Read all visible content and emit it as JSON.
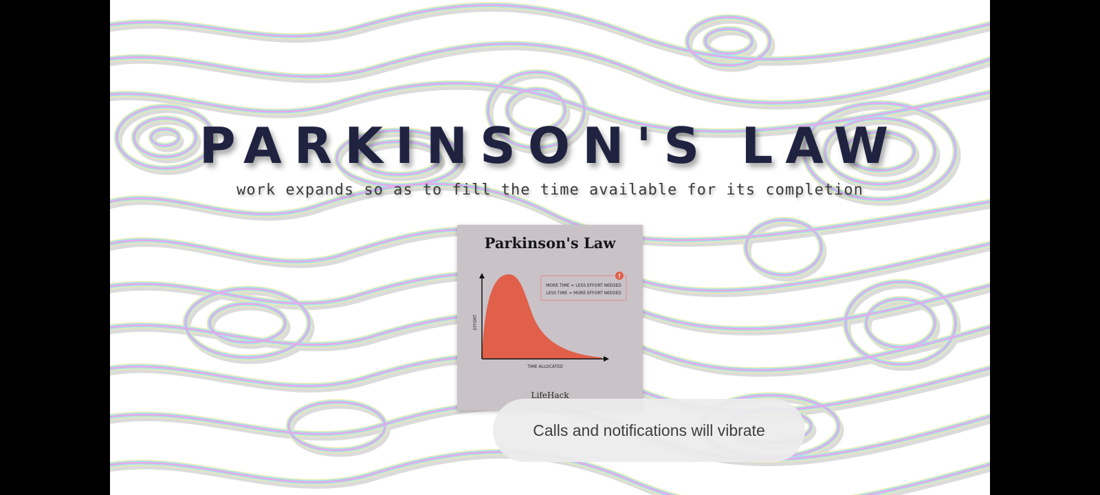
{
  "slide": {
    "title": "PARKINSON'S LAW",
    "subtitle": "work expands so as to fill the time available for its completion"
  },
  "infographic": {
    "title": "Parkinson's Law",
    "y_axis_label": "EFFORT",
    "x_axis_label": "TIME ALLOCATED",
    "note_line_1": "MORE TIME = LESS EFFORT NEEDED",
    "note_line_2": "LESS TIME = MORE EFFORT NEEDED",
    "note_badge": "!",
    "brand": "LifeHack",
    "curve_color": "#e0604a",
    "card_color": "#c9c3c8"
  },
  "toast": {
    "message": "Calls and notifications will vibrate"
  },
  "colors": {
    "title": "#1f2340",
    "contour_pink": "#e7a8e6",
    "contour_cyan": "#a8e2ee",
    "contour_yellow": "#f1ecaa"
  }
}
